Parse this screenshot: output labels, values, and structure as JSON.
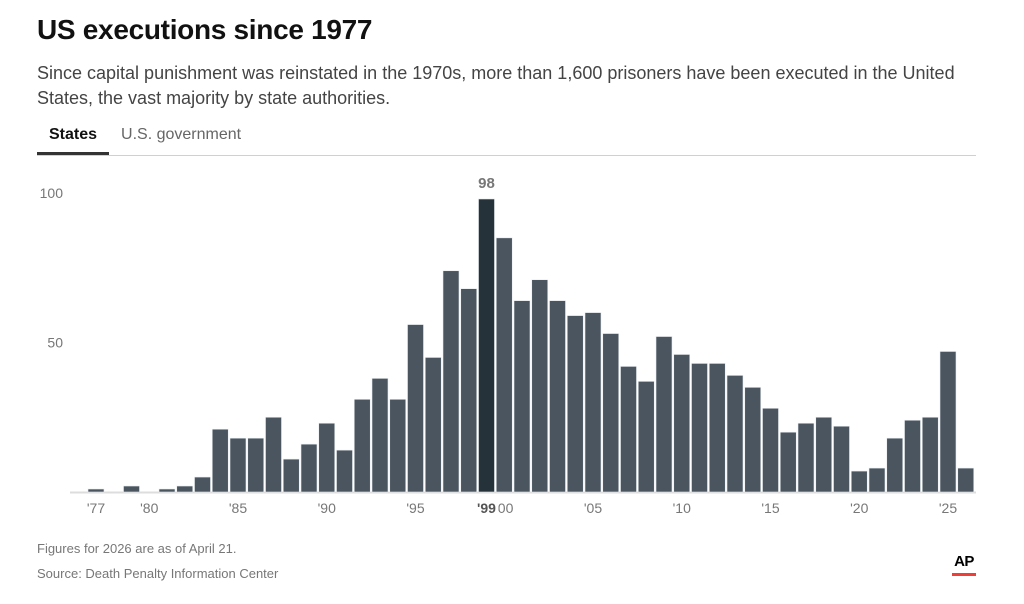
{
  "header": {
    "title": "US executions since 1977",
    "subtitle": "Since capital punishment was reinstated in the 1970s, more than 1,600 prisoners have been executed in the United States, the vast majority by state authorities."
  },
  "tabs": [
    {
      "label": "States",
      "active": true
    },
    {
      "label": "U.S. government",
      "active": false
    }
  ],
  "footer": {
    "note": "Figures for 2026 are as of April 21.",
    "source": "Source: Death Penalty Information Center",
    "logo": "AP"
  },
  "colors": {
    "bar": "#4a555f",
    "highlight": "#25323a",
    "axis_text": "#777777",
    "highlight_label": "#777777",
    "logo_accent": "#ef3e36"
  },
  "chart_data": {
    "type": "bar",
    "title": "US executions since 1977",
    "xlabel": "",
    "ylabel": "",
    "ylim": [
      0,
      100
    ],
    "yticks": [
      50,
      100
    ],
    "grid": false,
    "categories": [
      1977,
      1978,
      1979,
      1980,
      1981,
      1982,
      1983,
      1984,
      1985,
      1986,
      1987,
      1988,
      1989,
      1990,
      1991,
      1992,
      1993,
      1994,
      1995,
      1996,
      1997,
      1998,
      1999,
      2000,
      2001,
      2002,
      2003,
      2004,
      2005,
      2006,
      2007,
      2008,
      2009,
      2010,
      2011,
      2012,
      2013,
      2014,
      2015,
      2016,
      2017,
      2018,
      2019,
      2020,
      2021,
      2022,
      2023,
      2024,
      2025,
      2026
    ],
    "values": [
      1,
      0,
      2,
      0,
      1,
      2,
      5,
      21,
      18,
      18,
      25,
      11,
      16,
      23,
      14,
      31,
      38,
      31,
      56,
      45,
      74,
      68,
      98,
      85,
      64,
      71,
      64,
      59,
      60,
      53,
      42,
      37,
      52,
      46,
      43,
      43,
      39,
      35,
      28,
      20,
      23,
      25,
      22,
      7,
      8,
      18,
      24,
      25,
      47,
      8
    ],
    "xtick_labels": [
      {
        "year": 1977,
        "label": "'77"
      },
      {
        "year": 1980,
        "label": "'80"
      },
      {
        "year": 1985,
        "label": "'85"
      },
      {
        "year": 1990,
        "label": "'90"
      },
      {
        "year": 1995,
        "label": "'95"
      },
      {
        "year": 2000,
        "label": "'00"
      },
      {
        "year": 2005,
        "label": "'05"
      },
      {
        "year": 2010,
        "label": "'10"
      },
      {
        "year": 2015,
        "label": "'15"
      },
      {
        "year": 2020,
        "label": "'20"
      },
      {
        "year": 2025,
        "label": "'25"
      }
    ],
    "highlight": {
      "year": 1999,
      "value": 98,
      "label": "98",
      "axis_label": "'99"
    }
  }
}
